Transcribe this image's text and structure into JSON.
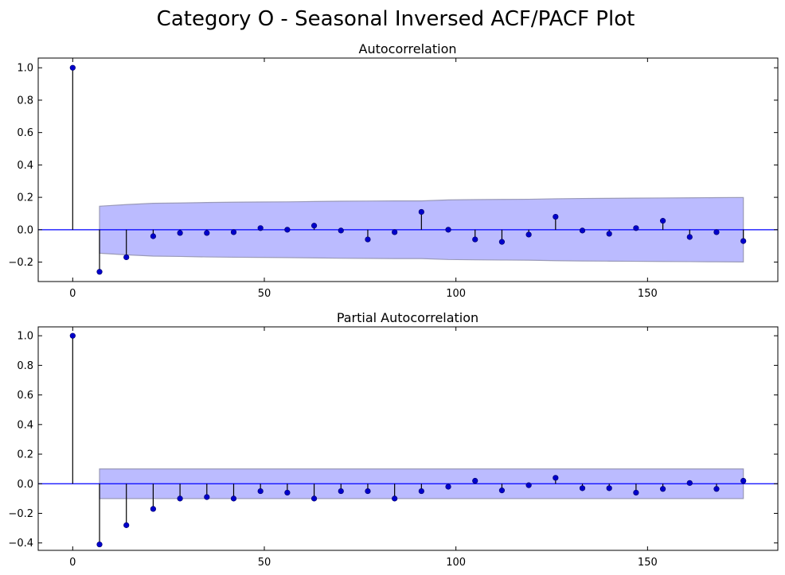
{
  "figure": {
    "title": "Category O - Seasonal Inversed ACF/PACF Plot"
  },
  "chart_data": [
    {
      "type": "stem",
      "title": "Autocorrelation",
      "xlabel": "",
      "ylabel": "",
      "xlim": [
        -9,
        184
      ],
      "ylim": [
        -0.32,
        1.06
      ],
      "x_ticks": [
        0,
        50,
        100,
        150
      ],
      "x_tick_labels": [
        "0",
        "50",
        "100",
        "150"
      ],
      "y_ticks": [
        1.0,
        0.8,
        0.6,
        0.4,
        0.2,
        0.0,
        -0.2
      ],
      "y_tick_labels": [
        "1.0",
        "0.8",
        "0.6",
        "0.4",
        "0.2",
        "0.0",
        "−0.2"
      ],
      "lags": [
        0,
        7,
        14,
        21,
        28,
        35,
        42,
        49,
        56,
        63,
        70,
        77,
        84,
        91,
        98,
        105,
        112,
        119,
        126,
        133,
        140,
        147,
        154,
        161,
        168,
        175
      ],
      "values": [
        1.0,
        -0.26,
        -0.17,
        -0.04,
        -0.02,
        -0.02,
        -0.015,
        0.01,
        0.0,
        0.025,
        -0.005,
        -0.06,
        -0.015,
        0.11,
        0.0,
        -0.06,
        -0.075,
        -0.03,
        0.08,
        -0.005,
        -0.025,
        0.01,
        0.055,
        -0.045,
        -0.015,
        -0.07
      ],
      "confidence_band": {
        "lags": [
          7,
          14,
          21,
          28,
          35,
          42,
          49,
          56,
          63,
          70,
          77,
          84,
          91,
          98,
          105,
          112,
          119,
          126,
          133,
          140,
          147,
          154,
          161,
          168,
          175
        ],
        "upper": [
          0.145,
          0.155,
          0.163,
          0.165,
          0.168,
          0.17,
          0.171,
          0.172,
          0.174,
          0.176,
          0.177,
          0.178,
          0.178,
          0.184,
          0.186,
          0.187,
          0.188,
          0.191,
          0.193,
          0.194,
          0.195,
          0.196,
          0.197,
          0.198,
          0.199
        ]
      },
      "zero_line": true,
      "grid": false,
      "legend": "none"
    },
    {
      "type": "stem",
      "title": "Partial Autocorrelation",
      "xlabel": "",
      "ylabel": "",
      "xlim": [
        -9,
        184
      ],
      "ylim": [
        -0.45,
        1.06
      ],
      "x_ticks": [
        0,
        50,
        100,
        150
      ],
      "x_tick_labels": [
        "0",
        "50",
        "100",
        "150"
      ],
      "y_ticks": [
        1.0,
        0.8,
        0.6,
        0.4,
        0.2,
        0.0,
        -0.2,
        -0.4
      ],
      "y_tick_labels": [
        "1.0",
        "0.8",
        "0.6",
        "0.4",
        "0.2",
        "0.0",
        "−0.2",
        "−0.4"
      ],
      "lags": [
        0,
        7,
        14,
        21,
        28,
        35,
        42,
        49,
        56,
        63,
        70,
        77,
        84,
        91,
        98,
        105,
        112,
        119,
        126,
        133,
        140,
        147,
        154,
        161,
        168,
        175
      ],
      "values": [
        1.0,
        -0.41,
        -0.28,
        -0.17,
        -0.1,
        -0.09,
        -0.1,
        -0.05,
        -0.06,
        -0.1,
        -0.05,
        -0.05,
        -0.1,
        -0.05,
        -0.02,
        0.02,
        -0.045,
        -0.01,
        0.04,
        -0.03,
        -0.03,
        -0.06,
        -0.035,
        0.005,
        -0.035,
        0.02
      ],
      "confidence_band": {
        "lags": [
          7,
          175
        ],
        "upper": [
          0.1,
          0.1
        ]
      },
      "zero_line": true,
      "grid": false,
      "legend": "none"
    }
  ],
  "colors": {
    "marker": "#0000cc",
    "stem": "#000000",
    "zero_line": "#0000ff",
    "band_fill": "#bbbbff",
    "band_edge": "#9a9ab8",
    "axes": "#000000"
  }
}
